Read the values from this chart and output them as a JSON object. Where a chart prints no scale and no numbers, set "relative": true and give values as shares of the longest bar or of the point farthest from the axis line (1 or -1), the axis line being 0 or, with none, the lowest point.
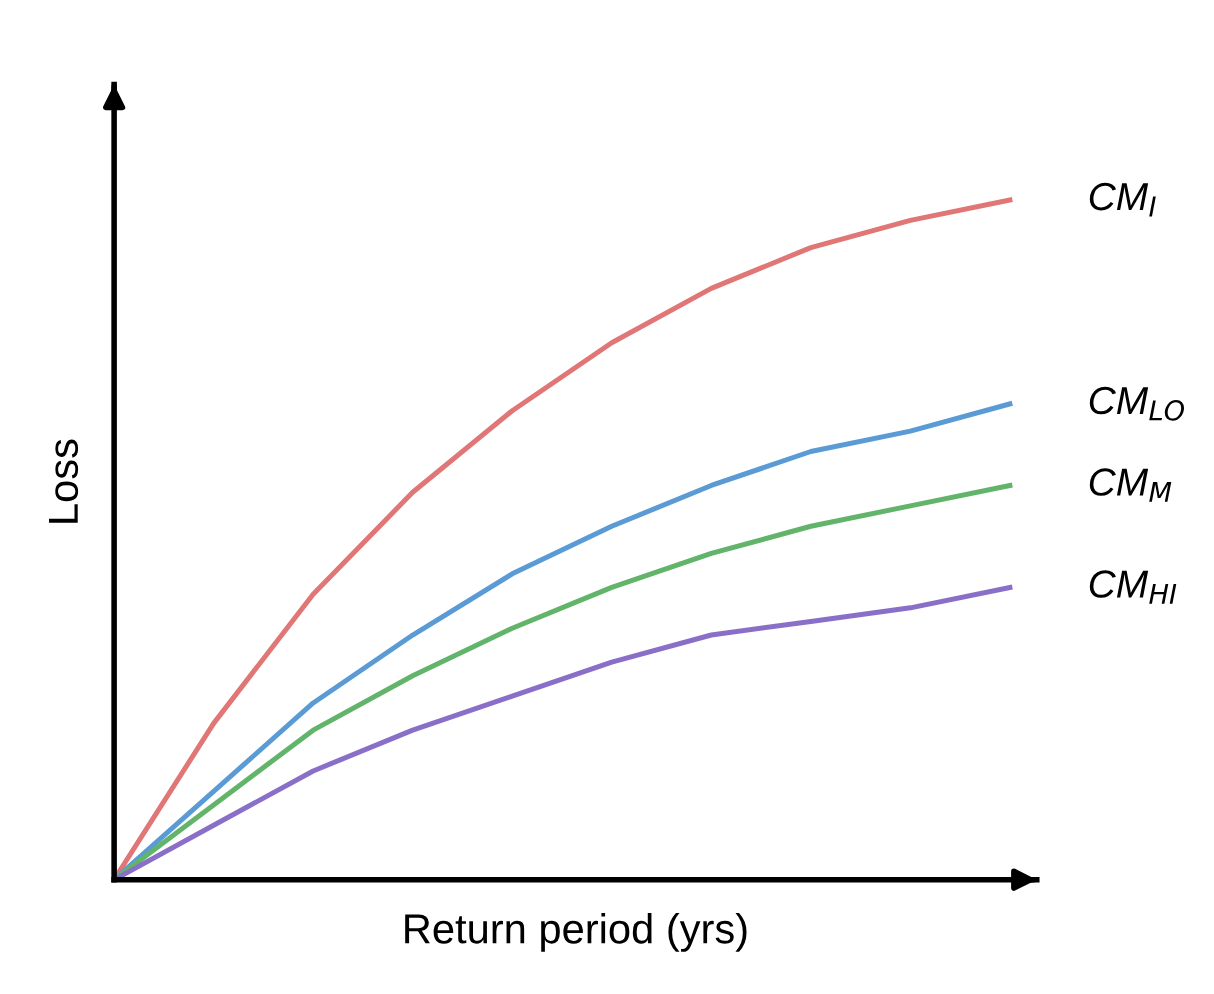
{
  "chart_data": {
    "type": "line",
    "relative": true,
    "xlabel": "Return period (yrs)",
    "ylabel": "Loss",
    "categories": [
      null,
      null,
      null,
      null,
      null,
      null,
      null,
      null,
      null,
      null
    ],
    "legend": false,
    "tick_labels": false,
    "marker": "none",
    "line_style": "solid",
    "series": [
      {
        "name": "CM$_{I}$",
        "color": "#e07676",
        "values": [
          0,
          0.23,
          0.42,
          0.57,
          0.69,
          0.79,
          0.87,
          0.93,
          0.97,
          1.0
        ]
      },
      {
        "name": "CM$_{LO}$",
        "color": "#5b9bd5",
        "values": [
          0,
          0.13,
          0.26,
          0.36,
          0.45,
          0.52,
          0.58,
          0.63,
          0.66,
          0.7
        ]
      },
      {
        "name": "CM$_{M}$",
        "color": "#62b46a",
        "values": [
          0,
          0.11,
          0.22,
          0.3,
          0.37,
          0.43,
          0.48,
          0.52,
          0.55,
          0.58
        ]
      },
      {
        "name": "CM$_{HI}$",
        "color": "#8a6fc9",
        "values": [
          0,
          0.08,
          0.16,
          0.22,
          0.27,
          0.32,
          0.36,
          0.38,
          0.4,
          0.43
        ]
      }
    ]
  }
}
